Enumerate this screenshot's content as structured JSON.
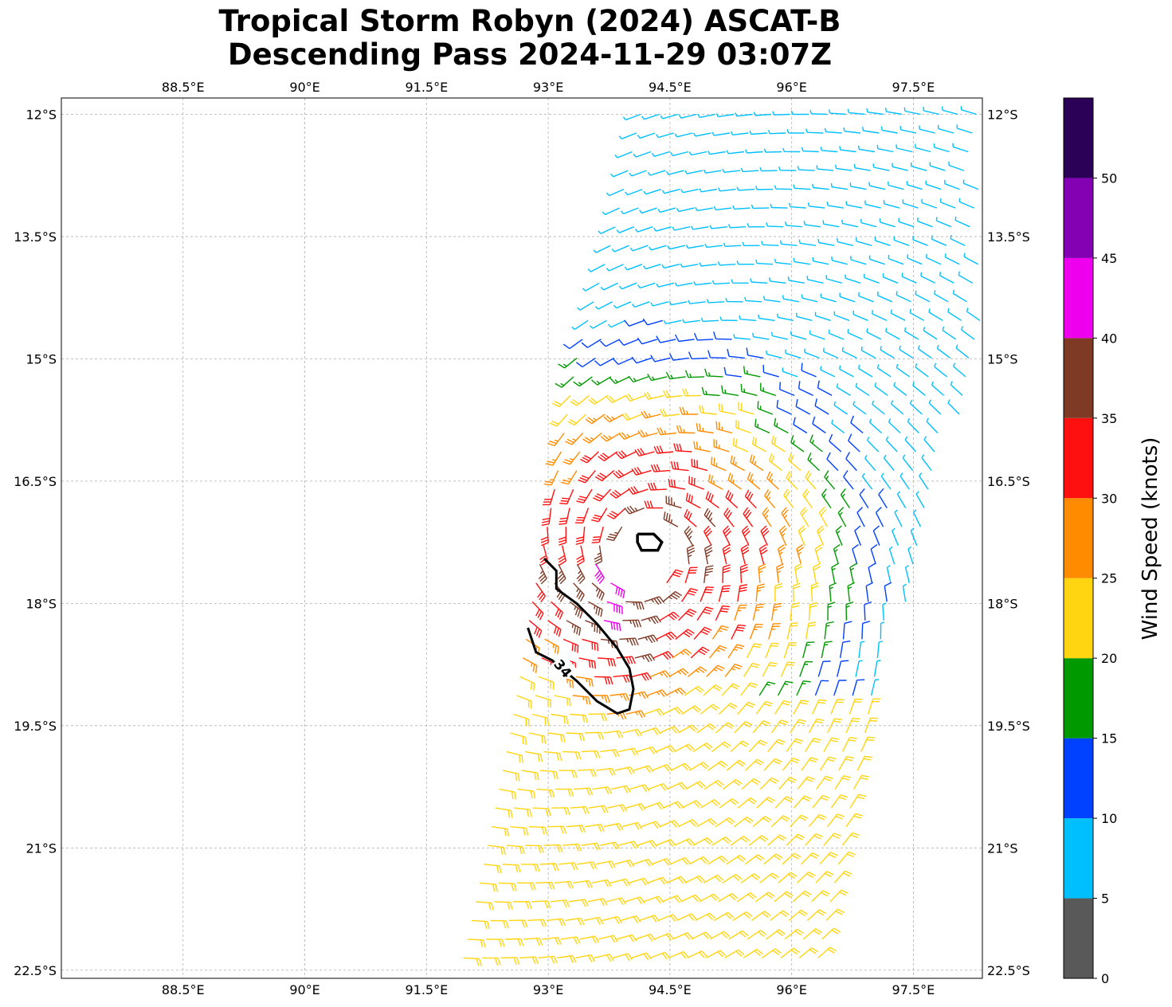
{
  "title": {
    "line1": "Tropical Storm Robyn (2024) ASCAT-B",
    "line2": "Descending Pass 2024-11-29 03:07Z"
  },
  "map": {
    "lon_range": [
      87.0,
      98.35
    ],
    "lat_range": [
      -22.6,
      -11.8
    ],
    "lon_ticks": [
      {
        "value": 88.5,
        "label": "88.5°E"
      },
      {
        "value": 90.0,
        "label": "90°E"
      },
      {
        "value": 91.5,
        "label": "91.5°E"
      },
      {
        "value": 93.0,
        "label": "93°E"
      },
      {
        "value": 94.5,
        "label": "94.5°E"
      },
      {
        "value": 96.0,
        "label": "96°E"
      },
      {
        "value": 97.5,
        "label": "97.5°E"
      }
    ],
    "lat_ticks": [
      {
        "value": -12.0,
        "label": "12°S"
      },
      {
        "value": -13.5,
        "label": "13.5°S"
      },
      {
        "value": -15.0,
        "label": "15°S"
      },
      {
        "value": -16.5,
        "label": "16.5°S"
      },
      {
        "value": -18.0,
        "label": "18°S"
      },
      {
        "value": -19.5,
        "label": "19.5°S"
      },
      {
        "value": -21.0,
        "label": "21°S"
      },
      {
        "value": -22.5,
        "label": "22.5°S"
      }
    ],
    "gridlines": true,
    "storm_center": {
      "lon": 94.2,
      "lat": -17.4
    },
    "contour": {
      "label": "34",
      "color": "#000000",
      "main_polyline": [
        [
          92.95,
          -17.45
        ],
        [
          93.1,
          -17.6
        ],
        [
          93.1,
          -17.82
        ],
        [
          93.35,
          -18.0
        ],
        [
          93.6,
          -18.25
        ],
        [
          93.85,
          -18.55
        ],
        [
          94.0,
          -18.8
        ],
        [
          94.05,
          -19.05
        ],
        [
          94.0,
          -19.3
        ],
        [
          93.85,
          -19.35
        ],
        [
          93.6,
          -19.2
        ],
        [
          93.35,
          -18.95
        ],
        [
          93.05,
          -18.7
        ],
        [
          92.85,
          -18.6
        ],
        [
          92.75,
          -18.3
        ]
      ],
      "inner_ring": [
        [
          94.1,
          -17.15
        ],
        [
          94.3,
          -17.15
        ],
        [
          94.4,
          -17.25
        ],
        [
          94.35,
          -17.35
        ],
        [
          94.15,
          -17.35
        ],
        [
          94.1,
          -17.25
        ],
        [
          94.1,
          -17.15
        ]
      ],
      "label_position": {
        "lon": 93.18,
        "lat": -18.8
      }
    }
  },
  "colorbar": {
    "label": "Wind Speed (knots)",
    "bins": [
      {
        "from": 0,
        "to": 5,
        "color": "#595959"
      },
      {
        "from": 5,
        "to": 10,
        "color": "#00bfff"
      },
      {
        "from": 10,
        "to": 15,
        "color": "#0040ff"
      },
      {
        "from": 15,
        "to": 20,
        "color": "#009900"
      },
      {
        "from": 20,
        "to": 25,
        "color": "#ffd511"
      },
      {
        "from": 25,
        "to": 30,
        "color": "#ff8c00"
      },
      {
        "from": 30,
        "to": 35,
        "color": "#ff1010"
      },
      {
        "from": 35,
        "to": 40,
        "color": "#7f3a26"
      },
      {
        "from": 40,
        "to": 45,
        "color": "#ee00ee"
      },
      {
        "from": 45,
        "to": 50,
        "color": "#8400b3"
      },
      {
        "from": 50,
        "to": 55,
        "color": "#2b0057"
      }
    ],
    "ticks": [
      "0",
      "5",
      "10",
      "15",
      "20",
      "25",
      "30",
      "35",
      "40",
      "45",
      "50"
    ]
  },
  "chart_data": {
    "type": "wind-barb map",
    "title": "Tropical Storm Robyn (2024) ASCAT-B Descending Pass 2024-11-29 03:07Z",
    "units": "knots",
    "swath_lon_left_edge": [
      [
        -11.95,
        94.15
      ],
      [
        -13.5,
        93.8
      ],
      [
        -15.0,
        93.35
      ],
      [
        -16.5,
        93.1
      ],
      [
        -18.0,
        92.8
      ],
      [
        -19.5,
        92.55
      ],
      [
        -21.0,
        92.25
      ],
      [
        -22.6,
        91.9
      ]
    ],
    "swath_lon_right_edge": [
      [
        -11.95,
        98.35
      ],
      [
        -15.0,
        98.35
      ],
      [
        -16.5,
        97.8
      ],
      [
        -18.0,
        97.4
      ],
      [
        -19.5,
        97.1
      ],
      [
        -21.0,
        96.75
      ],
      [
        -22.6,
        96.4
      ]
    ],
    "max_wind_region_kt": 40,
    "wind_speed_max_observed_kt": 43
  }
}
